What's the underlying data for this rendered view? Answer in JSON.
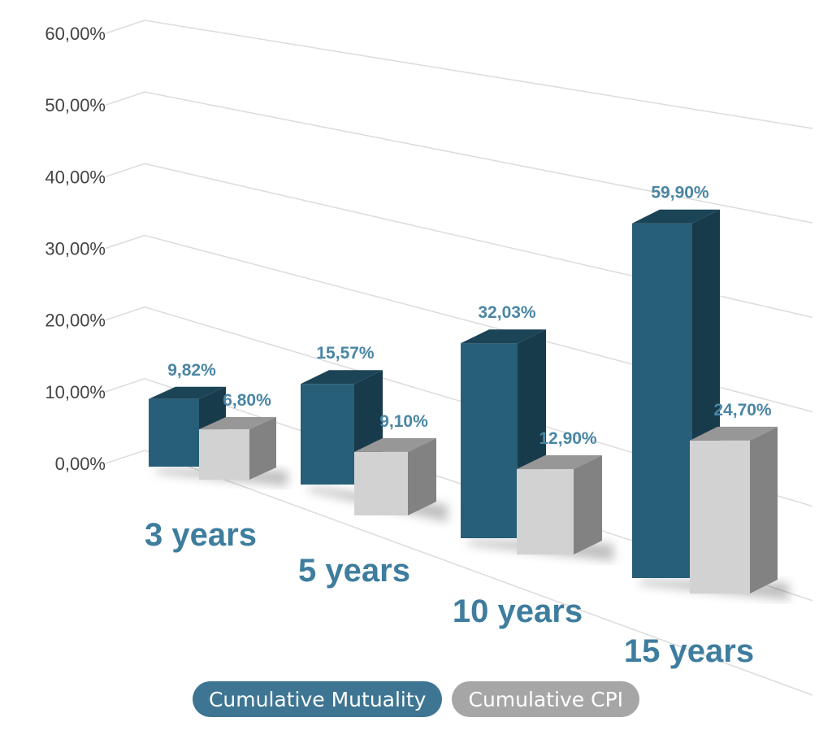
{
  "chart_data": {
    "type": "bar",
    "categories": [
      "3 years",
      "5 years",
      "10 years",
      "15 years"
    ],
    "series": [
      {
        "name": "Cumulative Mutuality",
        "values": [
          9.82,
          15.57,
          32.03,
          59.9
        ],
        "labels": [
          "9,82%",
          "15,57%",
          "32,03%",
          "59,90%"
        ]
      },
      {
        "name": "Cumulative CPI",
        "values": [
          6.8,
          9.1,
          12.9,
          24.7
        ],
        "labels": [
          "6,80%",
          "9,10%",
          "12,90%",
          "24,70%"
        ]
      }
    ],
    "y_ticks": [
      "0,00%",
      "10,00%",
      "20,00%",
      "30,00%",
      "40,00%",
      "50,00%",
      "60,00%"
    ],
    "ylim": [
      0,
      60
    ],
    "grid": true,
    "legend": "bottom",
    "style": "3d-perspective",
    "colors": {
      "series_1": "#275f79",
      "series_2": "#d3d2d3",
      "label_text": "#4a86a4",
      "category_text": "#3e7d9e",
      "tick_text": "#444444",
      "grid": "#dcdcdc",
      "legend_1": "#3e7592",
      "legend_2": "#a6a6a6"
    }
  }
}
